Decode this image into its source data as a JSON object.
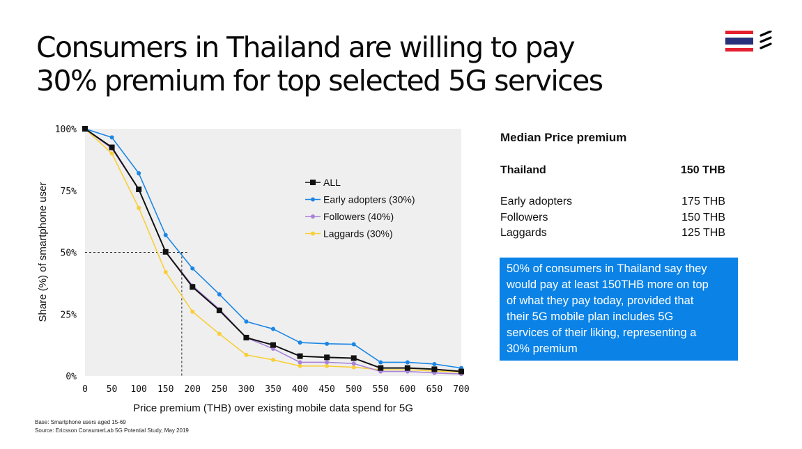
{
  "title": {
    "line1": "Consumers in Thailand are willing to pay",
    "line2": "30% premium for top selected 5G services"
  },
  "colors": {
    "plot_background": "#efefef",
    "all": "#111111",
    "early_adopters": "#1a86e6",
    "followers": "#a682d8",
    "laggards": "#f8cf3a",
    "callout": "#0a82e6",
    "flag_red": "#e4202e",
    "flag_blue": "#27307a"
  },
  "icons": {
    "flag": "thailand-flag-icon",
    "logo": "ericsson-logo-icon"
  },
  "chart_data": {
    "type": "line",
    "xlabel": "Price premium (THB) over existing mobile data spend for 5G",
    "ylabel": "Share (%) of smartphone user",
    "x": [
      0,
      50,
      100,
      150,
      200,
      250,
      300,
      350,
      400,
      450,
      500,
      550,
      600,
      650,
      700
    ],
    "xlim": [
      0,
      700
    ],
    "ylim": [
      0,
      100
    ],
    "y_ticks": [
      "0%",
      "25%",
      "50%",
      "75%",
      "100%"
    ],
    "x_ticks": [
      "0",
      "50",
      "100",
      "150",
      "200",
      "250",
      "300",
      "350",
      "400",
      "450",
      "500",
      "550",
      "600",
      "650",
      "700"
    ],
    "legend_position": "center-right",
    "grid": false,
    "reference_point": {
      "x": 180,
      "y": 50
    },
    "series": [
      {
        "name": "ALL",
        "marker": "square",
        "values": [
          100,
          92.5,
          75.5,
          50.2,
          36,
          26.5,
          15.5,
          12.5,
          8,
          7.5,
          7.2,
          3.2,
          3.2,
          2.7,
          1.8
        ]
      },
      {
        "name": "Early adopters (30%)",
        "marker": "circle",
        "values": [
          100,
          96.5,
          82,
          57,
          43.5,
          33,
          22,
          19,
          13.5,
          13,
          12.8,
          5.5,
          5.5,
          4.8,
          3.2
        ]
      },
      {
        "name": "Followers (40%)",
        "marker": "circle",
        "values": [
          100,
          92,
          75.5,
          50.2,
          36.5,
          27,
          15.5,
          11,
          5.5,
          5.5,
          5,
          1.8,
          1.8,
          1.2,
          0.8
        ]
      },
      {
        "name": "Laggards (30%)",
        "marker": "circle",
        "values": [
          100,
          90,
          68,
          42,
          26,
          17,
          8.5,
          6.5,
          4,
          4,
          3.5,
          2.5,
          2.5,
          2,
          1.5
        ]
      }
    ]
  },
  "side_panel": {
    "heading": "Median Price premium",
    "total": {
      "label": "Thailand",
      "value": "150 THB"
    },
    "rows": [
      {
        "label": "Early adopters",
        "value": "175 THB"
      },
      {
        "label": "Followers",
        "value": "150 THB"
      },
      {
        "label": "Laggards",
        "value": "125 THB"
      }
    ],
    "callout_lines": [
      "50% of consumers in Thailand say they",
      "would pay at least 150THB more on top",
      "of what they pay today, provided that",
      "their 5G mobile plan includes 5G",
      "services of their liking, representing a",
      "30% premium"
    ]
  },
  "footnotes": {
    "base": "Base: Smartphone users aged 15-69",
    "source": "Source: Ericsson ConsumerLab 5G Potential Study, May 2019"
  }
}
